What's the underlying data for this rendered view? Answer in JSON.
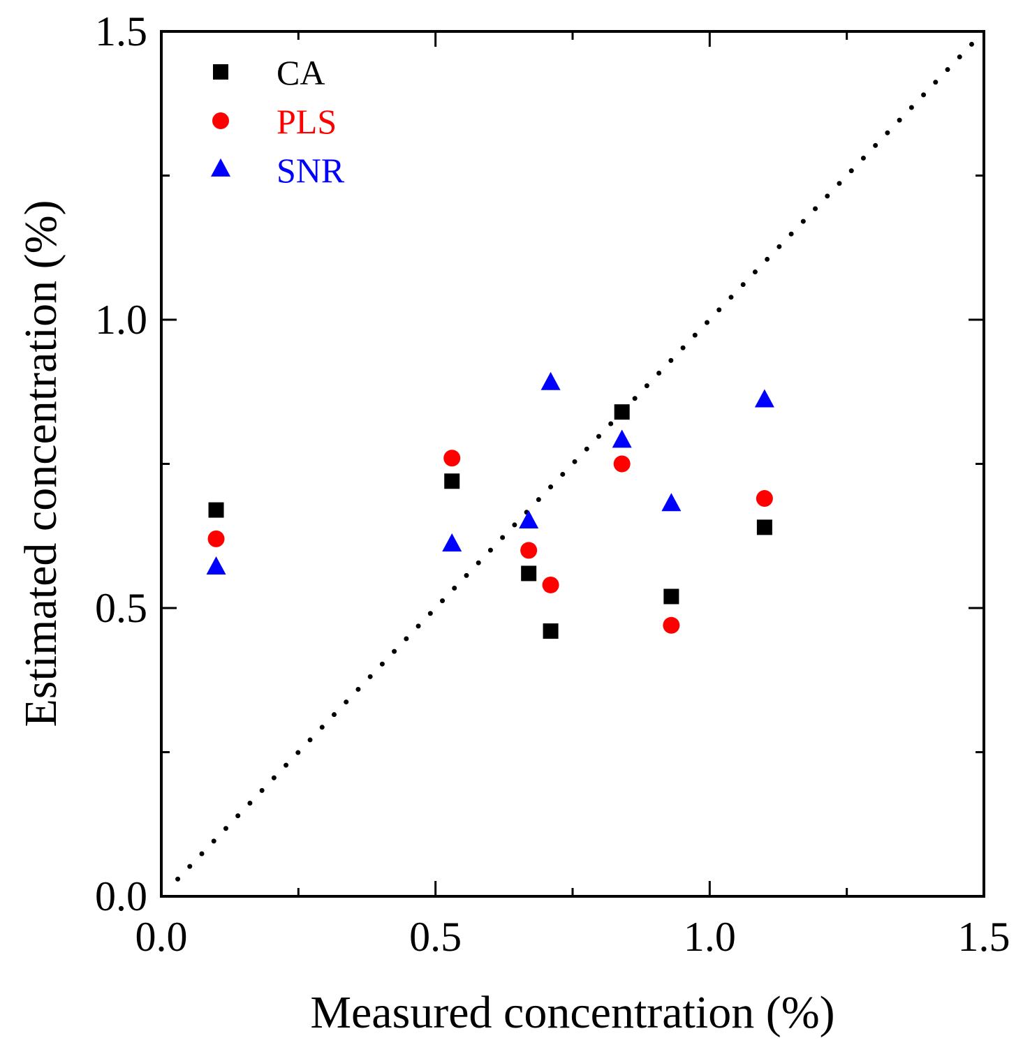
{
  "chart_data": {
    "type": "scatter",
    "title": "",
    "xlabel": "Measured concentration (%)",
    "ylabel": "Estimated concentration (%)",
    "xlim": [
      0.0,
      1.5
    ],
    "ylim": [
      0.0,
      1.5
    ],
    "x_ticks": [
      "0.0",
      "0.5",
      "1.0",
      "1.5"
    ],
    "y_ticks": [
      "0.0",
      "0.5",
      "1.0",
      "1.5"
    ],
    "x_minor_ticks": [
      0.25,
      0.75,
      1.25
    ],
    "y_minor_ticks": [
      0.25,
      0.75,
      1.25
    ],
    "grid": false,
    "legend_position": "top-left",
    "reference_line": {
      "style": "dotted",
      "from": [
        0.03,
        0.03
      ],
      "to": [
        1.48,
        1.48
      ],
      "color": "#000000"
    },
    "series": [
      {
        "name": "CA",
        "marker": "square",
        "color": "#000000",
        "points": [
          [
            0.1,
            0.67
          ],
          [
            0.53,
            0.72
          ],
          [
            0.67,
            0.56
          ],
          [
            0.71,
            0.46
          ],
          [
            0.84,
            0.84
          ],
          [
            0.93,
            0.52
          ],
          [
            1.1,
            0.64
          ]
        ]
      },
      {
        "name": "PLS",
        "marker": "circle",
        "color": "#ff0000",
        "points": [
          [
            0.1,
            0.62
          ],
          [
            0.53,
            0.76
          ],
          [
            0.67,
            0.6
          ],
          [
            0.71,
            0.54
          ],
          [
            0.84,
            0.75
          ],
          [
            0.93,
            0.47
          ],
          [
            1.1,
            0.69
          ]
        ]
      },
      {
        "name": "SNR",
        "marker": "triangle",
        "color": "#0000ff",
        "points": [
          [
            0.1,
            0.57
          ],
          [
            0.53,
            0.61
          ],
          [
            0.67,
            0.65
          ],
          [
            0.71,
            0.89
          ],
          [
            0.84,
            0.79
          ],
          [
            0.93,
            0.68
          ],
          [
            1.1,
            0.86
          ]
        ]
      }
    ]
  }
}
